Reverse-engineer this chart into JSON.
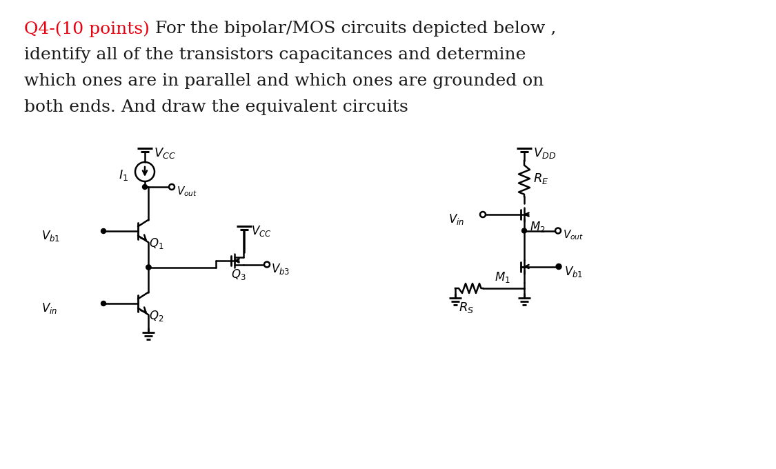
{
  "bg_color": "#ffffff",
  "text_color": "#1a1a1a",
  "red_color": "#e8000e",
  "title_red": "Q4-(10 points)",
  "title_black": "For the bipolar/MOS circuits depicted below ,",
  "line2": "identify all of the transistors capacitances and determine",
  "line3": "which ones are in parallel and which ones are grounded on",
  "line4": "both ends. And draw the equivalent circuits",
  "font_size_title": 18,
  "font_family": "serif"
}
